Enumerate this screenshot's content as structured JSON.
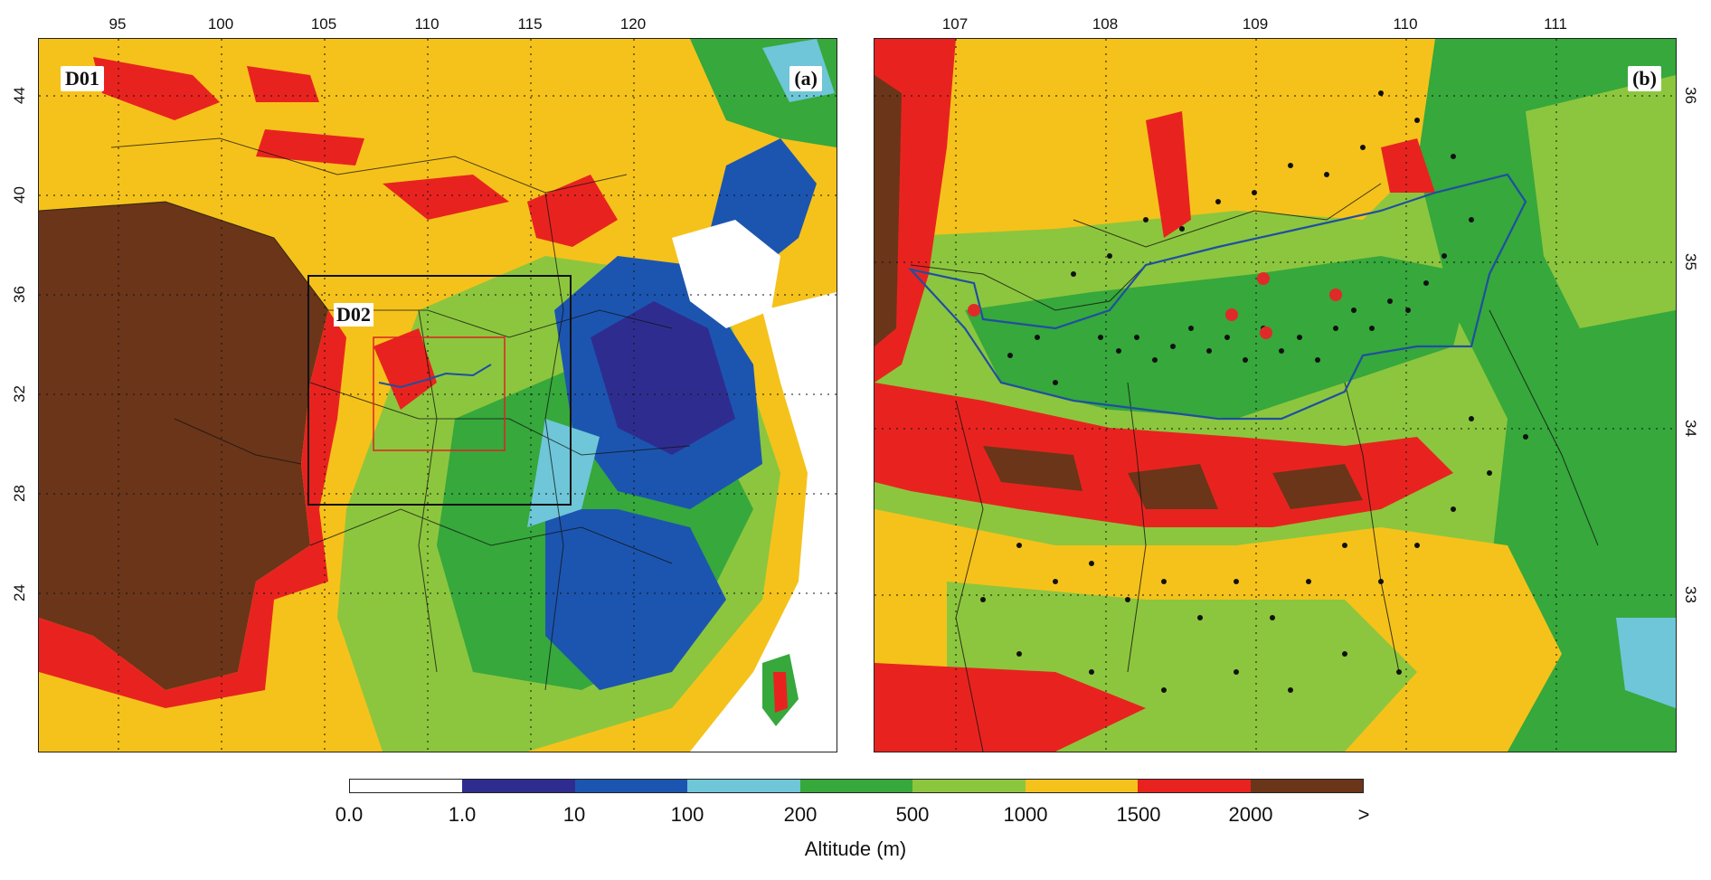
{
  "panel_a": {
    "label": "(a)",
    "domain_outer": "D01",
    "domain_inner": "D02",
    "lon_ticks": [
      "95",
      "100",
      "105",
      "110",
      "115",
      "120"
    ],
    "lat_ticks": [
      "44",
      "40",
      "36",
      "32",
      "28",
      "24"
    ]
  },
  "panel_b": {
    "label": "(b)",
    "lon_ticks": [
      "107",
      "108",
      "109",
      "110",
      "111"
    ],
    "lat_ticks": [
      "36",
      "35",
      "34",
      "33"
    ]
  },
  "colorbar": {
    "colors": [
      "#ffffff",
      "#2e2d8f",
      "#1c55b0",
      "#6ec6d8",
      "#36a83c",
      "#8cc63e",
      "#f5c21b",
      "#e8231f",
      "#6b3519"
    ],
    "labels": [
      "0.0",
      "1.0",
      "10",
      "100",
      "200",
      "500",
      "1000",
      "1500",
      "2000",
      ">"
    ],
    "title": "Altitude (m)"
  },
  "elevation_colors": {
    "very_high": "#6b3519",
    "high": "#e8231f",
    "mid_high": "#f5c21b",
    "mid": "#8cc63e",
    "low_mid": "#36a83c",
    "low": "#6ec6d8",
    "lower": "#1c55b0",
    "lowest": "#2e2d8f",
    "sea": "#ffffff"
  },
  "overlay_colors": {
    "boundary": "#1f4fa0",
    "station_dot": "#111111",
    "red_marker": "#e02a2a"
  }
}
